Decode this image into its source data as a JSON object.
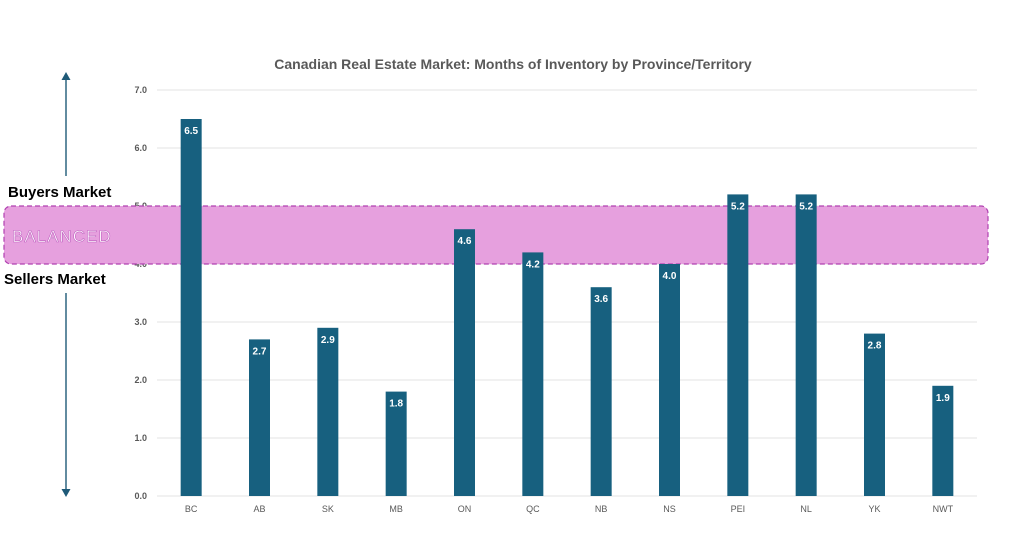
{
  "chart_data": {
    "type": "bar",
    "title": "Canadian Real Estate Market: Months of Inventory by Province/Territory",
    "categories": [
      "BC",
      "AB",
      "SK",
      "MB",
      "ON",
      "QC",
      "NB",
      "NS",
      "PEI",
      "NL",
      "YK",
      "NWT"
    ],
    "values": [
      6.5,
      2.7,
      2.9,
      1.8,
      4.6,
      4.2,
      3.6,
      4.0,
      5.2,
      5.2,
      2.8,
      1.9
    ],
    "value_labels": [
      "6.5",
      "2.7",
      "2.9",
      "1.8",
      "4.6",
      "4.2",
      "3.6",
      "4.0",
      "5.2",
      "5.2",
      "2.8",
      "1.9"
    ],
    "yticks": [
      "0.0",
      "1.0",
      "2.0",
      "3.0",
      "4.0",
      "5.0",
      "6.0",
      "7.0"
    ],
    "ylim": [
      0,
      7
    ],
    "grid": true,
    "bar_color": "#17607f",
    "band": {
      "label": "BALANCED",
      "from": 4.0,
      "to": 5.0,
      "color": "#e6a0de",
      "border_color": "#b040b0"
    },
    "annotations": {
      "upper": "Buyers Market",
      "lower": "Sellers Market"
    },
    "arrow_color": "#1f5a78"
  }
}
